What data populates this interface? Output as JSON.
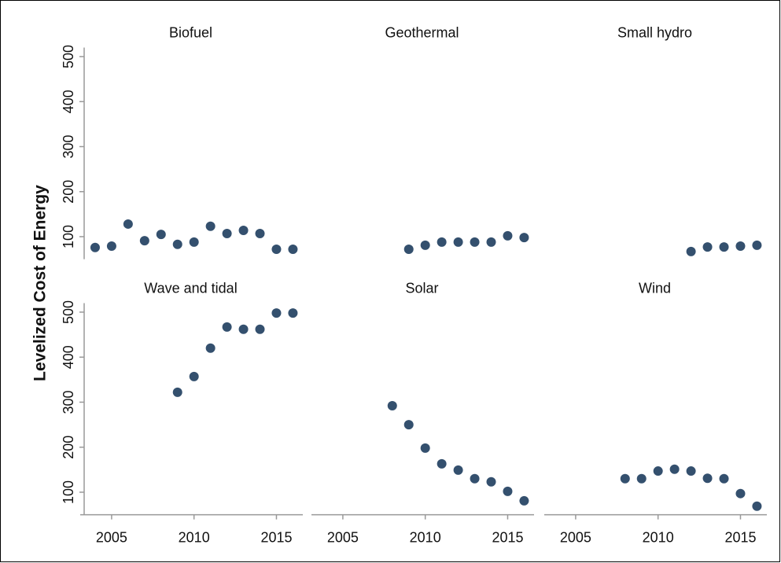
{
  "ylabel": "Levelized Cost of Energy",
  "chart_data": [
    {
      "type": "scatter",
      "title": "Biofuel",
      "color": "#34506e",
      "x": [
        2004,
        2005,
        2006,
        2007,
        2008,
        2009,
        2010,
        2011,
        2012,
        2013,
        2014,
        2015,
        2016
      ],
      "values": [
        76,
        79,
        128,
        91,
        105,
        83,
        88,
        123,
        107,
        114,
        107,
        72,
        72
      ],
      "xlim": [
        2003,
        2016.6
      ],
      "ylim": [
        50,
        520
      ],
      "yticks": [
        100,
        200,
        300,
        400,
        500
      ]
    },
    {
      "type": "scatter",
      "title": "Geothermal",
      "color": "#34506e",
      "x": [
        2009,
        2010,
        2011,
        2012,
        2013,
        2014,
        2015,
        2016
      ],
      "values": [
        72,
        81,
        88,
        88,
        88,
        88,
        102,
        98
      ],
      "xlim": [
        2003,
        2016.6
      ],
      "ylim": [
        50,
        520
      ]
    },
    {
      "type": "scatter",
      "title": "Small hydro",
      "color": "#34506e",
      "x": [
        2012,
        2013,
        2014,
        2015,
        2016
      ],
      "values": [
        67,
        77,
        77,
        79,
        81
      ],
      "xlim": [
        2003,
        2016.6
      ],
      "ylim": [
        50,
        520
      ]
    },
    {
      "type": "scatter",
      "title": "Wave and tidal",
      "color": "#34506e",
      "x": [
        2009,
        2010,
        2011,
        2012,
        2013,
        2014,
        2015,
        2016
      ],
      "values": [
        322,
        357,
        420,
        467,
        462,
        462,
        498,
        498
      ],
      "xlim": [
        2003,
        2016.6
      ],
      "ylim": [
        50,
        520
      ],
      "yticks": [
        100,
        200,
        300,
        400,
        500
      ],
      "xticks": [
        2005,
        2010,
        2015
      ]
    },
    {
      "type": "scatter",
      "title": "Solar",
      "color": "#34506e",
      "x": [
        2008,
        2009,
        2010,
        2011,
        2012,
        2013,
        2014,
        2015,
        2016
      ],
      "values": [
        292,
        250,
        198,
        163,
        149,
        130,
        123,
        102,
        81
      ],
      "xlim": [
        2003,
        2016.6
      ],
      "ylim": [
        50,
        520
      ],
      "xticks": [
        2005,
        2010,
        2015
      ]
    },
    {
      "type": "scatter",
      "title": "Wind",
      "color": "#34506e",
      "x": [
        2008,
        2009,
        2010,
        2011,
        2012,
        2013,
        2014,
        2015,
        2016
      ],
      "values": [
        130,
        130,
        147,
        151,
        147,
        131,
        130,
        97,
        69
      ],
      "xlim": [
        2003,
        2016.6
      ],
      "ylim": [
        50,
        520
      ],
      "xticks": [
        2005,
        2010,
        2015
      ]
    }
  ]
}
